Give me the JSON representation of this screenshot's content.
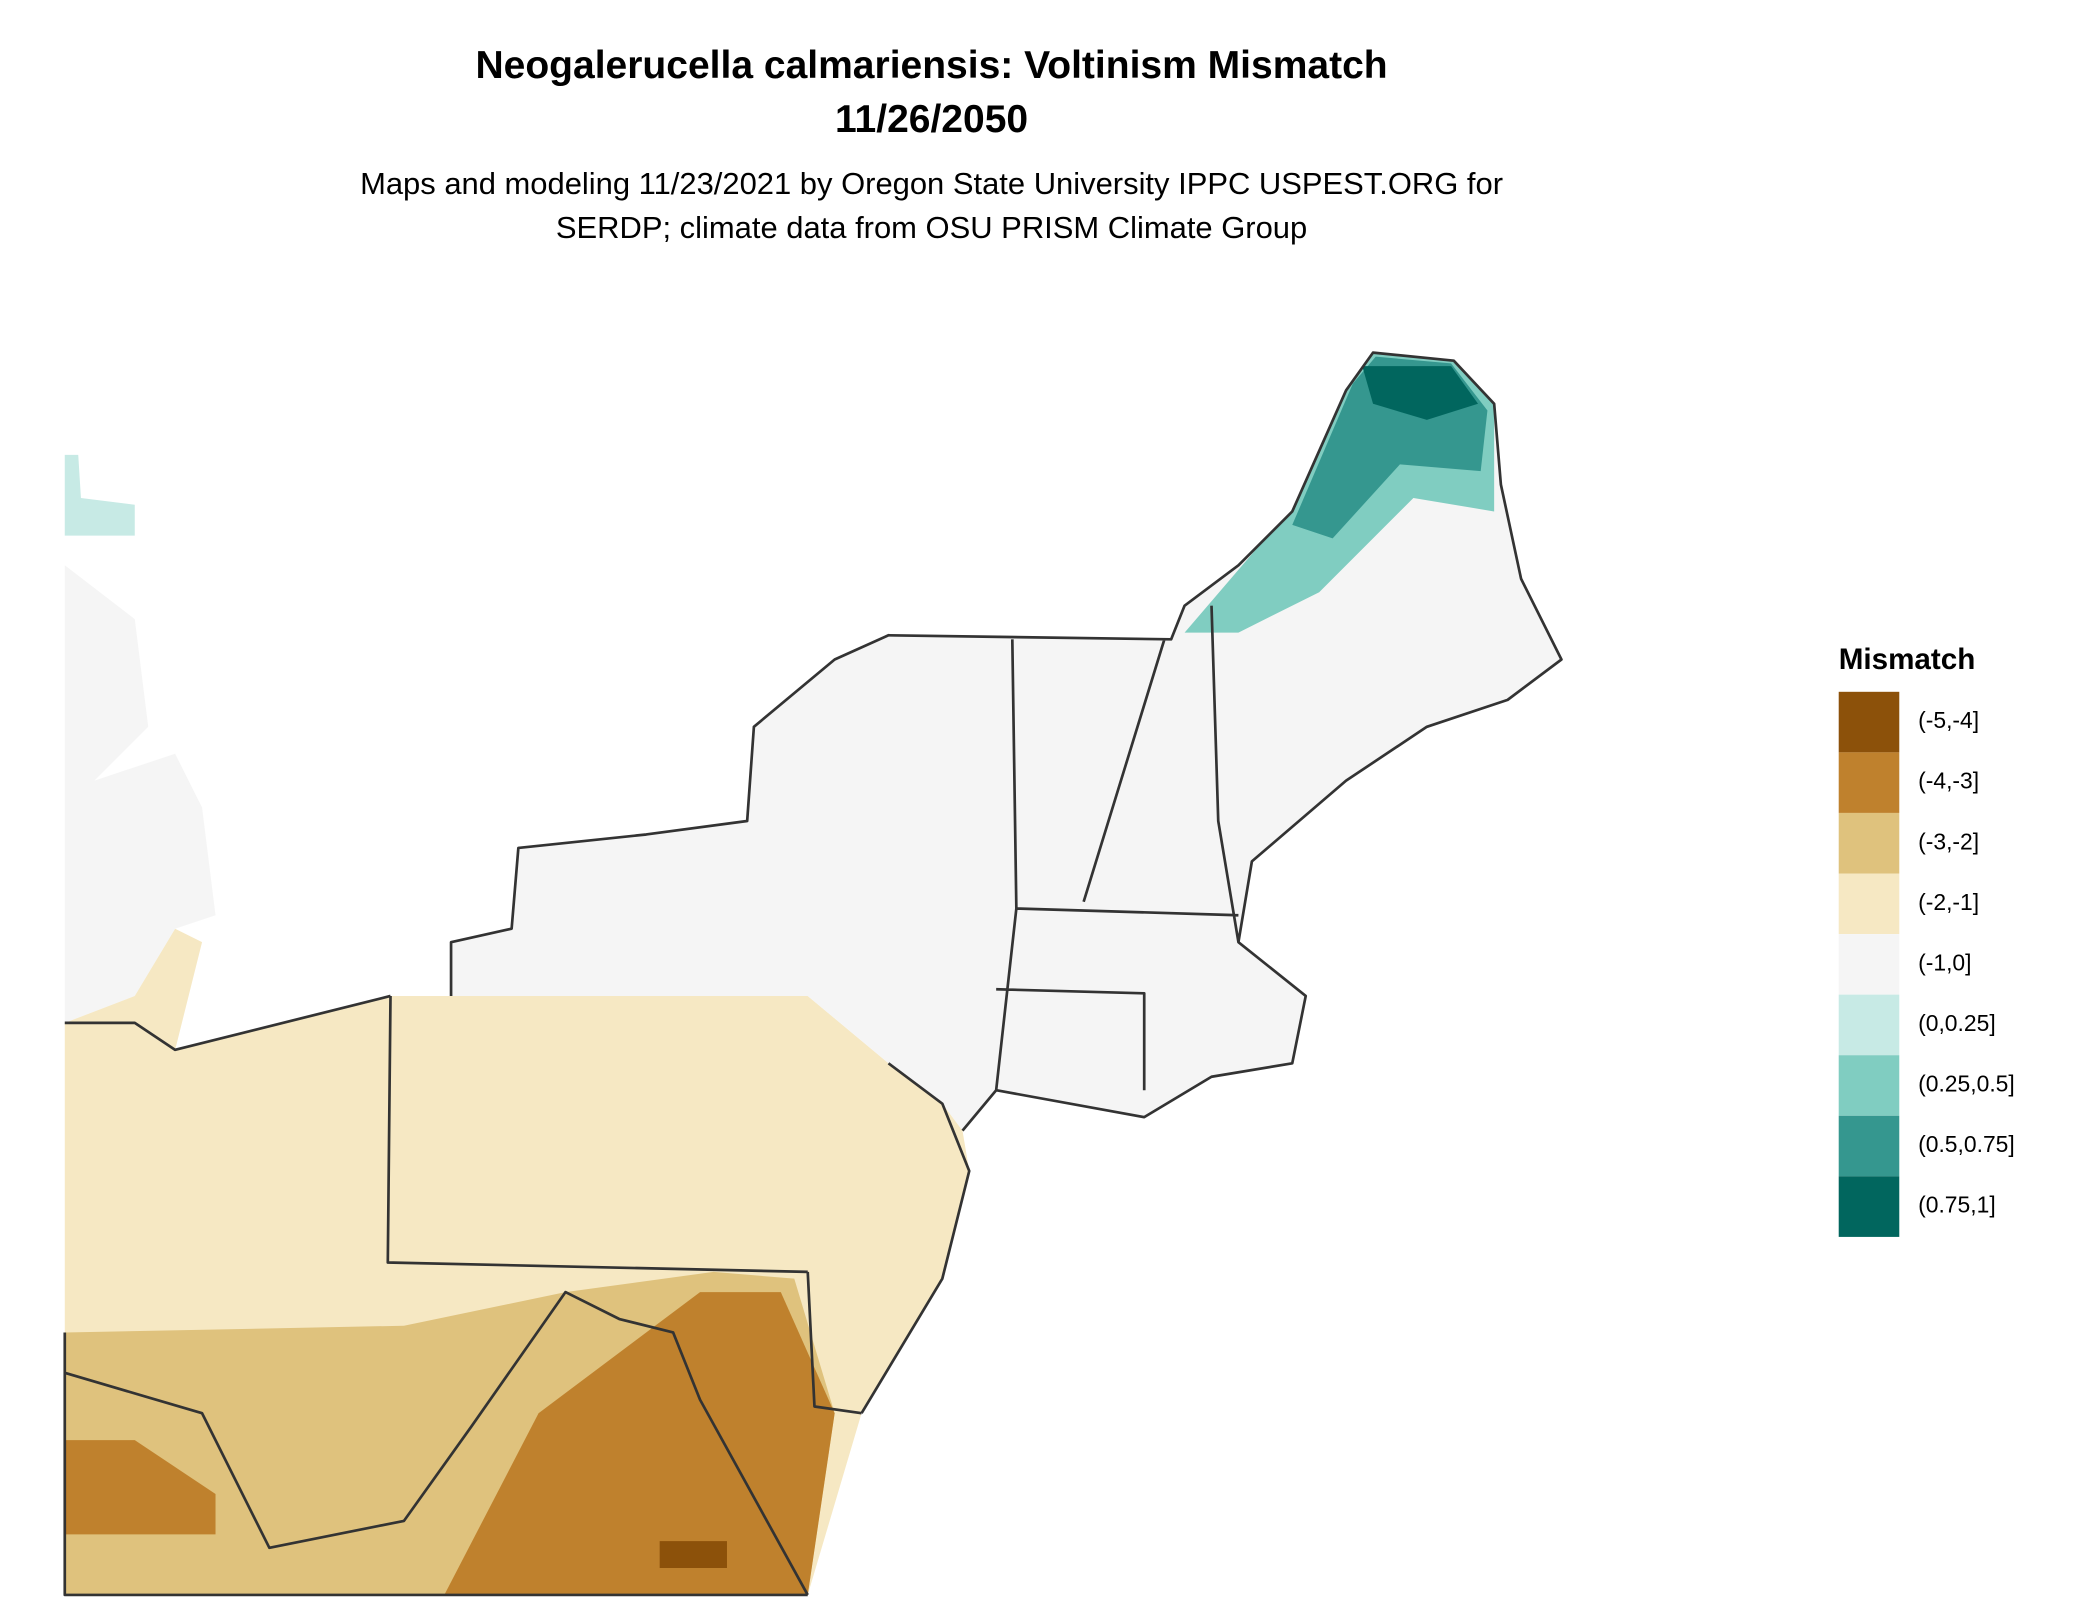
{
  "header": {
    "title": "Neogalerucella calmariensis: Voltinism Mismatch",
    "date": "11/26/2050",
    "subtitle_lines": [
      "Maps and modeling 11/23/2021 by Oregon State University IPPC USPEST.ORG for",
      "SERDP; climate data from OSU PRISM Climate Group"
    ]
  },
  "legend": {
    "title": "Mismatch",
    "items": [
      {
        "label": "(-5,-4]",
        "color": "#8c510a"
      },
      {
        "label": "(-4,-3]",
        "color": "#bf812d"
      },
      {
        "label": "(-3,-2]",
        "color": "#dfc27d"
      },
      {
        "label": "(-2,-1]",
        "color": "#f6e8c3"
      },
      {
        "label": "(-1,0]",
        "color": "#f5f5f5"
      },
      {
        "label": "(0,0.25]",
        "color": "#c7eae5"
      },
      {
        "label": "(0.25,0.5]",
        "color": "#80cdc1"
      },
      {
        "label": "(0.5,0.75]",
        "color": "#35978f"
      },
      {
        "label": "(0.75,1]",
        "color": "#01665e"
      }
    ]
  }
}
